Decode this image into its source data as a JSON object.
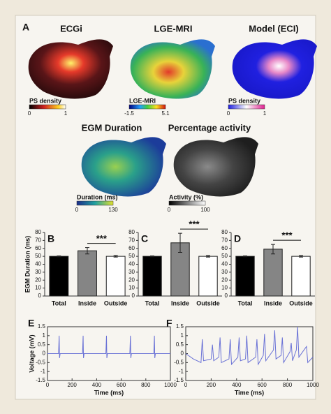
{
  "panel_label": "A",
  "maps": [
    {
      "title": "ECGi",
      "colorbar_label": "PS density",
      "colorbar_ticks": [
        0,
        1
      ]
    },
    {
      "title": "LGE-MRI",
      "colorbar_label": "LGE-MRI",
      "colorbar_ticks": [
        -1.5,
        5.1
      ]
    },
    {
      "title": "Model (ECI)",
      "colorbar_label": "PS density",
      "colorbar_ticks": [
        0,
        1
      ]
    },
    {
      "title": "EGM Duration",
      "colorbar_label": "Duration (ms)",
      "colorbar_ticks": [
        0,
        130
      ]
    },
    {
      "title": "Percentage activity",
      "colorbar_label": "Activity (%)",
      "colorbar_ticks": [
        0,
        100
      ]
    }
  ],
  "chart_data": [
    {
      "type": "bar",
      "panel": "B",
      "ylabel": "EGM Duration (ms)",
      "categories": [
        "Total",
        "Inside",
        "Outside"
      ],
      "values": [
        50,
        57,
        50
      ],
      "errors": [
        0.5,
        4,
        1
      ],
      "colors": [
        "#000000",
        "#858585",
        "#ffffff"
      ],
      "annotation": "***",
      "ylim": [
        0,
        80
      ],
      "yticks": [
        0,
        10,
        20,
        30,
        40,
        50,
        60,
        70,
        80
      ]
    },
    {
      "type": "bar",
      "panel": "C",
      "categories": [
        "Total",
        "Inside",
        "Outside"
      ],
      "values": [
        50,
        67,
        50
      ],
      "errors": [
        0.5,
        12,
        1
      ],
      "colors": [
        "#000000",
        "#858585",
        "#ffffff"
      ],
      "annotation": "***",
      "ylim": [
        0,
        80
      ],
      "yticks": [
        0,
        10,
        20,
        30,
        40,
        50,
        60,
        70,
        80
      ]
    },
    {
      "type": "bar",
      "panel": "D",
      "categories": [
        "Total",
        "Inside",
        "Outside"
      ],
      "values": [
        50,
        59,
        50
      ],
      "errors": [
        0.5,
        6,
        1
      ],
      "colors": [
        "#000000",
        "#858585",
        "#ffffff"
      ],
      "annotation": "***",
      "ylim": [
        0,
        80
      ],
      "yticks": [
        0,
        10,
        20,
        30,
        40,
        50,
        60,
        70,
        80
      ]
    },
    {
      "type": "line",
      "panel": "E",
      "xlabel": "Time (ms)",
      "ylabel": "Voltage (mV)",
      "color": "#6a72d6",
      "x": [
        0,
        90,
        95,
        98,
        103,
        285,
        290,
        293,
        298,
        475,
        480,
        483,
        488,
        670,
        675,
        678,
        683,
        865,
        870,
        873,
        878,
        1000
      ],
      "values": [
        0,
        0,
        1.0,
        -0.25,
        0,
        0,
        1.0,
        -0.25,
        0,
        0,
        1.0,
        -0.25,
        0,
        0,
        1.0,
        -0.25,
        0,
        0,
        1.0,
        -0.25,
        0,
        0
      ],
      "xlim": [
        0,
        1000
      ],
      "xticks": [
        0,
        200,
        400,
        600,
        800,
        1000
      ],
      "ylim": [
        -1.5,
        1.5
      ],
      "yticks": [
        -1.5,
        -1,
        -0.5,
        0,
        0.5,
        1,
        1.5
      ]
    },
    {
      "type": "line",
      "panel": "F",
      "xlabel": "Time (ms)",
      "color": "#6a72d6",
      "x": [
        0,
        60,
        120,
        130,
        140,
        200,
        210,
        220,
        260,
        270,
        280,
        340,
        350,
        360,
        410,
        420,
        430,
        470,
        480,
        490,
        550,
        560,
        570,
        610,
        620,
        630,
        690,
        700,
        710,
        750,
        760,
        770,
        820,
        830,
        840,
        870,
        880,
        890,
        940,
        950,
        960,
        1000
      ],
      "values": [
        0,
        -0.3,
        -0.5,
        0.8,
        -0.4,
        -0.3,
        0.5,
        -0.4,
        -0.2,
        0.9,
        -0.5,
        -0.3,
        0.8,
        -0.6,
        -0.2,
        0.9,
        -0.4,
        -0.3,
        1.0,
        -0.5,
        -0.2,
        0.8,
        -0.6,
        -0.1,
        1.1,
        -0.4,
        0.2,
        1.3,
        -0.3,
        -0.1,
        0.9,
        -0.5,
        0.1,
        0.6,
        -0.4,
        0.2,
        1.5,
        -0.2,
        0.3,
        0.4,
        -0.5,
        -0.2
      ],
      "xlim": [
        0,
        1000
      ],
      "xticks": [
        0,
        200,
        400,
        600,
        800,
        1000
      ],
      "ylim": [
        -1.5,
        1.5
      ],
      "yticks": [
        -1.5,
        -1,
        -0.5,
        0,
        0.5,
        1,
        1.5
      ]
    }
  ]
}
